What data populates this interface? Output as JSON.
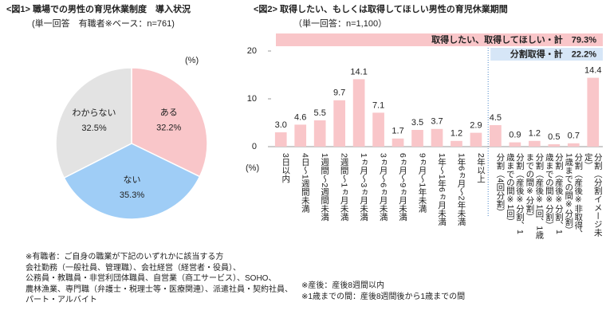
{
  "chart_data": [
    {
      "type": "pie",
      "title": "<図1> 職場での男性の育児休業制度　導入状況",
      "subtitle": "(単一回答　有職者※ベース：n=761)",
      "unit": "(%)",
      "categories": [
        "ある",
        "ない",
        "わからない"
      ],
      "values": [
        32.2,
        35.3,
        32.5
      ],
      "value_labels": [
        "32.2%",
        "35.3%",
        "32.5%"
      ],
      "colors": [
        "#f9c6c9",
        "#9fcdf6",
        "#e3e3e3"
      ]
    },
    {
      "type": "bar",
      "title": "<図2> 取得したい、もしくは取得してほしい男性の育児休業期間",
      "subtitle": "（単一回答：n=1,100）",
      "unit": "(%)",
      "categories": [
        "3日以内",
        "4日〜1週間未満",
        "1週間〜2週間未満",
        "2週間〜1ヵ月未満",
        "1ヵ月〜3ヵ月未満",
        "3ヵ月〜6ヵ月未満",
        "6ヵ月〜9ヵ月未満",
        "9ヵ月〜1年未満",
        "1年〜1年6ヵ月未満",
        "1年6ヵ月〜2年未満",
        "2年以上",
        "分割（4回分割）",
        "分割（産後※分割、1歳までの間※1回）",
        "分割（産後※1回、1歳までの間※分割）",
        "分割（産後※分割、1歳までの間※分割）",
        "分割（産後※非取得、1歳までの間※分割）",
        "分割（分割イメージ未定）"
      ],
      "values": [
        3.0,
        4.6,
        5.5,
        9.7,
        14.1,
        7.1,
        1.7,
        3.5,
        3.7,
        1.2,
        2.9,
        4.5,
        0.9,
        1.2,
        0.5,
        0.7,
        14.4
      ],
      "value_labels": [
        "3.0",
        "4.6",
        "5.5",
        "9.7",
        "14.1",
        "7.1",
        "1.7",
        "3.5",
        "3.7",
        "1.2",
        "2.9",
        "4.5",
        "0.9",
        "1.2",
        "0.5",
        "0.7",
        "14.4"
      ],
      "color": "#f9c6c9",
      "ylim": [
        0,
        20
      ],
      "yticks": [
        0,
        10,
        20
      ],
      "grid": false,
      "annotations": [
        "取得したい、取得してほしい・計　79.3%",
        "分割取得・計　22.2%"
      ]
    }
  ],
  "notes": {
    "left": [
      "※有職者：ご自身の職業が下記のいずれかに該当する方",
      "会社勤務（一般社員、管理職）、会社経営（経営者・役員）、",
      "公務員・教職員・非営利団体職員、自営業（商工サービス）、SOHO、",
      "農林漁業、専門職（弁護士・税理士等・医療関連）、派遣社員・契約社員、",
      "パート・アルバイト"
    ],
    "right": [
      "※産後：産後8週間以内",
      "※1歳までの間：産後8週間後から1歳までの間"
    ]
  }
}
